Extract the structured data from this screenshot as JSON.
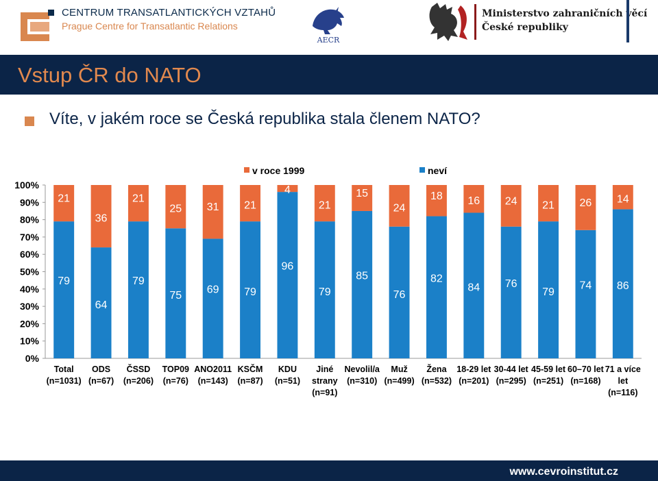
{
  "header": {
    "org_name": "CENTRUM TRANSATLANTICKÝCH VZTAHŮ",
    "org_sub": "Prague Centre for Transatlantic Relations",
    "aecr_label": "AECR",
    "ministry_line1": "Ministerstvo zahraničních věcí",
    "ministry_line2": "České republiky"
  },
  "slide": {
    "title": "Vstup ČR do NATO",
    "question": "Víte, v jakém roce se Česká republika stala členem NATO?"
  },
  "footer": {
    "url": "www.cevroinstitut.cz"
  },
  "colors": {
    "correct": "#1b80c8",
    "dontknow": "#e96a3a",
    "navy": "#0b2447",
    "accent": "#d9874f"
  },
  "chart_data": {
    "type": "bar",
    "stacked": true,
    "y_unit": "%",
    "ylim": [
      0,
      100
    ],
    "y_ticks": [
      "0%",
      "10%",
      "20%",
      "30%",
      "40%",
      "50%",
      "60%",
      "70%",
      "80%",
      "90%",
      "100%"
    ],
    "legend": [
      {
        "name": "v roce 1999",
        "color": "#e96a3a"
      },
      {
        "name": "neví",
        "color": "#1b80c8"
      }
    ],
    "categories": [
      {
        "label": [
          "Total",
          "(n=1031)"
        ]
      },
      {
        "label": [
          "ODS",
          "(n=67)"
        ]
      },
      {
        "label": [
          "ČSSD",
          "(n=206)"
        ]
      },
      {
        "label": [
          "TOP09",
          "(n=76)"
        ]
      },
      {
        "label": [
          "ANO2011",
          "(n=143)"
        ]
      },
      {
        "label": [
          "KSČM",
          "(n=87)"
        ]
      },
      {
        "label": [
          "KDU",
          "(n=51)"
        ]
      },
      {
        "label": [
          "Jiné",
          "strany",
          "(n=91)"
        ]
      },
      {
        "label": [
          "Nevolil/a",
          "(n=310)"
        ]
      },
      {
        "label": [
          "Muž",
          "(n=499)"
        ]
      },
      {
        "label": [
          "Žena",
          "(n=532)"
        ]
      },
      {
        "label": [
          "18-29 let",
          "(n=201)"
        ]
      },
      {
        "label": [
          "30-44 let",
          "(n=295)"
        ]
      },
      {
        "label": [
          "45-59 let",
          "(n=251)"
        ]
      },
      {
        "label": [
          "60–70 let",
          "(n=168)"
        ]
      },
      {
        "label": [
          "71 a více",
          "let",
          "(n=116)"
        ]
      }
    ],
    "series": [
      {
        "name": "neví",
        "color": "#1b80c8",
        "values": [
          79,
          64,
          79,
          75,
          69,
          79,
          96,
          79,
          85,
          76,
          82,
          84,
          76,
          79,
          74,
          86
        ]
      },
      {
        "name": "v roce 1999",
        "color": "#e96a3a",
        "values": [
          21,
          36,
          21,
          25,
          31,
          21,
          4,
          21,
          15,
          24,
          18,
          16,
          24,
          21,
          26,
          14
        ]
      }
    ]
  }
}
